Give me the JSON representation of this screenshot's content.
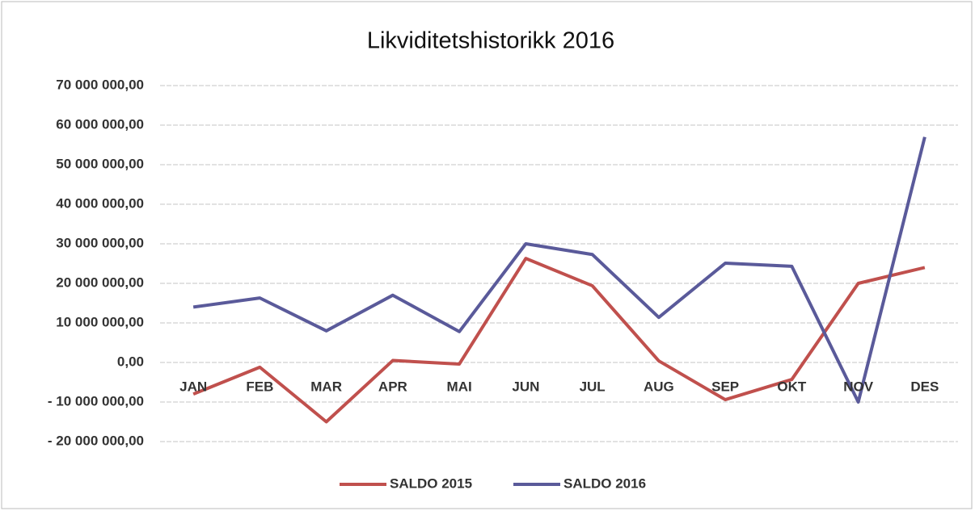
{
  "chart_data": {
    "type": "line",
    "title": "Likviditetshistorikk 2016",
    "categories": [
      "JAN",
      "FEB",
      "MAR",
      "APR",
      "MAI",
      "JUN",
      "JUL",
      "AUG",
      "SEP",
      "OKT",
      "NOV",
      "DES"
    ],
    "series": [
      {
        "name": "SALDO 2015",
        "color": "#c0504d",
        "values": [
          -8000000,
          -1200000,
          -15000000,
          500000,
          -400000,
          26300000,
          19400000,
          400000,
          -9400000,
          -4300000,
          20000000,
          24000000
        ]
      },
      {
        "name": "SALDO 2016",
        "color": "#5a5a9a",
        "values": [
          14000000,
          16300000,
          8000000,
          17000000,
          7800000,
          30000000,
          27300000,
          11400000,
          25100000,
          24300000,
          -10000000,
          57000000
        ]
      }
    ],
    "ylim": [
      -20000000,
      70000000
    ],
    "yticks": [
      {
        "value": -20000000,
        "label": "- 20 000 000,00"
      },
      {
        "value": -10000000,
        "label": "- 10 000 000,00"
      },
      {
        "value": 0,
        "label": "0,00"
      },
      {
        "value": 10000000,
        "label": "10 000 000,00"
      },
      {
        "value": 20000000,
        "label": "20 000 000,00"
      },
      {
        "value": 30000000,
        "label": "30 000 000,00"
      },
      {
        "value": 40000000,
        "label": "40 000 000,00"
      },
      {
        "value": 50000000,
        "label": "50 000 000,00"
      },
      {
        "value": 60000000,
        "label": "60 000 000,00"
      },
      {
        "value": 70000000,
        "label": "70 000 000,00"
      }
    ],
    "grid": true,
    "legend": "bottom"
  }
}
